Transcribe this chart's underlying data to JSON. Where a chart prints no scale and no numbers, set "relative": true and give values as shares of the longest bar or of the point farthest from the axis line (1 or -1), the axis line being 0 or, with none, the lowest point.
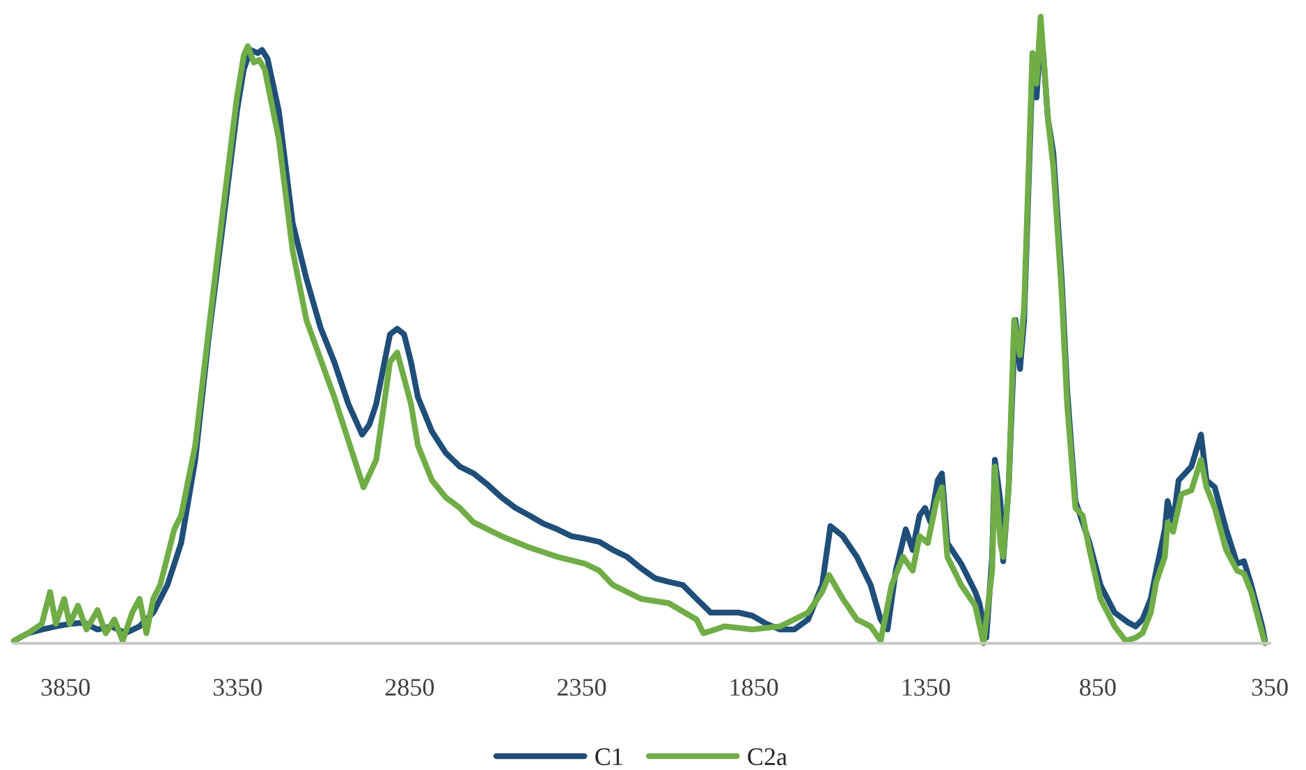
{
  "chart_data": {
    "type": "line",
    "relative": true,
    "xlim": [
      4000,
      350
    ],
    "xticks": [
      3850,
      3350,
      2850,
      2350,
      1850,
      1350,
      850,
      350
    ],
    "legend": "bottom",
    "grid": false,
    "marker": "none",
    "line_style": "solid",
    "series": [
      {
        "name": "C1",
        "color": "#1f4e79",
        "x": [
          4000,
          3959,
          3919,
          3878,
          3838,
          3797,
          3757,
          3716,
          3676,
          3635,
          3595,
          3554,
          3514,
          3473,
          3433,
          3392,
          3372,
          3352,
          3332,
          3312,
          3291,
          3279,
          3263,
          3230,
          3210,
          3190,
          3150,
          3109,
          3069,
          3028,
          2988,
          2967,
          2947,
          2927,
          2907,
          2886,
          2866,
          2846,
          2826,
          2785,
          2745,
          2704,
          2664,
          2623,
          2583,
          2542,
          2502,
          2461,
          2421,
          2380,
          2340,
          2299,
          2259,
          2218,
          2178,
          2137,
          2097,
          2056,
          2016,
          1975,
          1935,
          1894,
          1854,
          1813,
          1773,
          1732,
          1692,
          1651,
          1627,
          1591,
          1550,
          1510,
          1481,
          1461,
          1437,
          1408,
          1388,
          1368,
          1352,
          1336,
          1315,
          1303,
          1287,
          1247,
          1206,
          1194,
          1174,
          1157,
          1149,
          1133,
          1125,
          1109,
          1093,
          1089,
          1076,
          1064,
          1052,
          1040,
          1032,
          1028,
          1020,
          1016,
          1008,
          995,
          979,
          955,
          939,
          915,
          894,
          874,
          842,
          801,
          761,
          740,
          720,
          696,
          680,
          655,
          647,
          631,
          615,
          578,
          550,
          534,
          510,
          477,
          445,
          425,
          404,
          388,
          372,
          364
        ],
        "values": [
          0.004,
          0.016,
          0.022,
          0.027,
          0.031,
          0.033,
          0.022,
          0.027,
          0.016,
          0.027,
          0.049,
          0.093,
          0.16,
          0.293,
          0.493,
          0.671,
          0.76,
          0.849,
          0.916,
          0.947,
          0.942,
          0.947,
          0.933,
          0.849,
          0.76,
          0.671,
          0.582,
          0.504,
          0.449,
          0.382,
          0.333,
          0.349,
          0.382,
          0.438,
          0.493,
          0.502,
          0.493,
          0.449,
          0.393,
          0.338,
          0.304,
          0.282,
          0.271,
          0.253,
          0.233,
          0.216,
          0.204,
          0.191,
          0.182,
          0.171,
          0.167,
          0.162,
          0.149,
          0.138,
          0.12,
          0.104,
          0.098,
          0.093,
          0.071,
          0.049,
          0.049,
          0.049,
          0.044,
          0.031,
          0.022,
          0.022,
          0.038,
          0.093,
          0.187,
          0.171,
          0.138,
          0.093,
          0.038,
          0.022,
          0.116,
          0.182,
          0.149,
          0.204,
          0.216,
          0.193,
          0.26,
          0.271,
          0.16,
          0.127,
          0.082,
          0.064,
          0.009,
          0.138,
          0.293,
          0.227,
          0.131,
          0.249,
          0.471,
          0.516,
          0.438,
          0.516,
          0.716,
          0.916,
          0.938,
          0.871,
          0.938,
          0.98,
          0.938,
          0.838,
          0.782,
          0.582,
          0.404,
          0.227,
          0.193,
          0.16,
          0.093,
          0.049,
          0.033,
          0.027,
          0.038,
          0.071,
          0.116,
          0.182,
          0.227,
          0.193,
          0.26,
          0.282,
          0.333,
          0.26,
          0.249,
          0.182,
          0.127,
          0.131,
          0.093,
          0.06,
          0.027,
          0.004
        ]
      },
      {
        "name": "C2a",
        "color": "#70ad47",
        "x": [
          4000,
          3959,
          3919,
          3895,
          3878,
          3854,
          3838,
          3814,
          3789,
          3757,
          3733,
          3708,
          3684,
          3656,
          3635,
          3615,
          3595,
          3575,
          3554,
          3534,
          3514,
          3473,
          3433,
          3392,
          3352,
          3332,
          3320,
          3303,
          3287,
          3271,
          3230,
          3190,
          3150,
          3069,
          2984,
          2947,
          2907,
          2886,
          2846,
          2826,
          2785,
          2745,
          2704,
          2664,
          2583,
          2502,
          2421,
          2340,
          2299,
          2259,
          2178,
          2097,
          2016,
          1996,
          1935,
          1854,
          1773,
          1692,
          1651,
          1631,
          1591,
          1550,
          1510,
          1481,
          1449,
          1416,
          1388,
          1368,
          1344,
          1319,
          1303,
          1287,
          1247,
          1206,
          1182,
          1157,
          1149,
          1133,
          1125,
          1109,
          1093,
          1076,
          1064,
          1052,
          1040,
          1028,
          1016,
          1008,
          995,
          979,
          955,
          939,
          915,
          894,
          874,
          842,
          801,
          769,
          740,
          720,
          696,
          680,
          655,
          647,
          631,
          607,
          578,
          550,
          534,
          510,
          477,
          445,
          425,
          404,
          388,
          372,
          364
        ],
        "values": [
          0.004,
          0.016,
          0.031,
          0.082,
          0.031,
          0.071,
          0.031,
          0.06,
          0.022,
          0.053,
          0.016,
          0.038,
          0.004,
          0.049,
          0.071,
          0.016,
          0.071,
          0.093,
          0.138,
          0.182,
          0.204,
          0.316,
          0.504,
          0.693,
          0.871,
          0.938,
          0.953,
          0.927,
          0.931,
          0.916,
          0.804,
          0.627,
          0.516,
          0.393,
          0.249,
          0.293,
          0.449,
          0.464,
          0.382,
          0.316,
          0.26,
          0.233,
          0.216,
          0.193,
          0.171,
          0.153,
          0.138,
          0.127,
          0.116,
          0.093,
          0.071,
          0.064,
          0.038,
          0.016,
          0.027,
          0.022,
          0.027,
          0.049,
          0.082,
          0.109,
          0.071,
          0.038,
          0.027,
          0.004,
          0.093,
          0.138,
          0.116,
          0.171,
          0.16,
          0.227,
          0.249,
          0.138,
          0.093,
          0.06,
          0.0,
          0.116,
          0.282,
          0.16,
          0.138,
          0.249,
          0.516,
          0.46,
          0.538,
          0.738,
          0.942,
          0.893,
          1.0,
          0.938,
          0.838,
          0.76,
          0.56,
          0.382,
          0.216,
          0.204,
          0.149,
          0.071,
          0.027,
          0.004,
          0.009,
          0.016,
          0.049,
          0.098,
          0.138,
          0.193,
          0.178,
          0.238,
          0.244,
          0.293,
          0.249,
          0.216,
          0.149,
          0.116,
          0.111,
          0.082,
          0.049,
          0.016,
          0.0
        ]
      }
    ]
  }
}
